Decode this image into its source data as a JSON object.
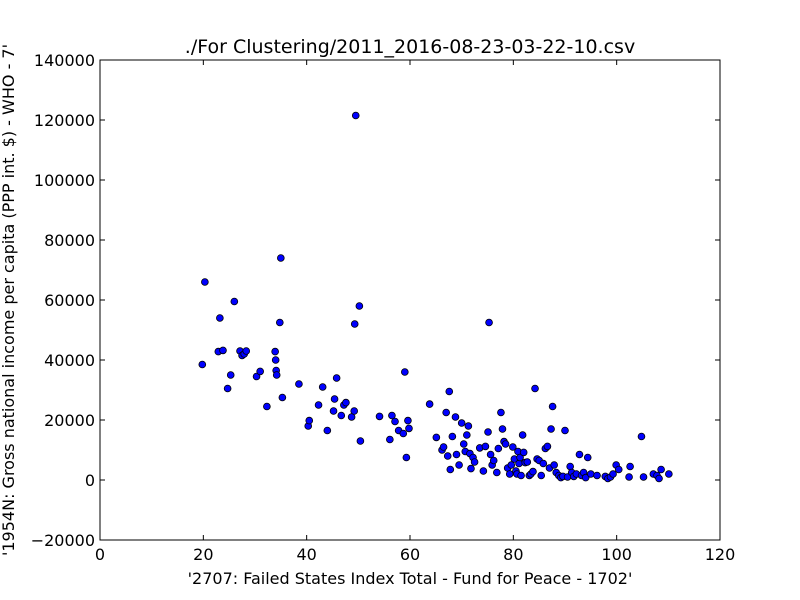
{
  "chart_data": {
    "type": "scatter",
    "title": "./For Clustering/2011_2016-08-23-03-22-10.csv",
    "xlabel": "'2707: Failed States Index Total - Fund for Peace - 1702'",
    "ylabel": "'1954N: Gross national income per capita (PPP int. $) - WHO - 7'",
    "xlim": [
      0,
      120
    ],
    "ylim": [
      -20000,
      140000
    ],
    "xticks": [
      "0",
      "20",
      "40",
      "60",
      "80",
      "100",
      "120"
    ],
    "yticks": [
      "−20000",
      "0",
      "20000",
      "40000",
      "60000",
      "80000",
      "100000",
      "120000",
      "140000"
    ],
    "grid": false,
    "marker_color": "#0000ff",
    "points": [
      [
        19.8,
        38500
      ],
      [
        20.3,
        66000
      ],
      [
        22.9,
        42800
      ],
      [
        23.2,
        54000
      ],
      [
        23.8,
        43200
      ],
      [
        24.7,
        30500
      ],
      [
        25.3,
        35000
      ],
      [
        26.0,
        59500
      ],
      [
        27.1,
        43000
      ],
      [
        27.5,
        41500
      ],
      [
        27.9,
        42000
      ],
      [
        28.3,
        43000
      ],
      [
        30.3,
        34500
      ],
      [
        31.0,
        36200
      ],
      [
        32.3,
        24500
      ],
      [
        33.9,
        42800
      ],
      [
        34.0,
        40000
      ],
      [
        34.1,
        36500
      ],
      [
        34.2,
        35000
      ],
      [
        34.8,
        52500
      ],
      [
        35.0,
        74000
      ],
      [
        35.3,
        27500
      ],
      [
        38.5,
        32000
      ],
      [
        40.3,
        18000
      ],
      [
        40.5,
        19800
      ],
      [
        42.3,
        25000
      ],
      [
        43.1,
        31000
      ],
      [
        44.0,
        16500
      ],
      [
        45.2,
        23000
      ],
      [
        45.4,
        27000
      ],
      [
        45.8,
        34000
      ],
      [
        46.7,
        21500
      ],
      [
        47.2,
        25000
      ],
      [
        47.6,
        25800
      ],
      [
        48.7,
        21000
      ],
      [
        49.2,
        23000
      ],
      [
        49.3,
        52000
      ],
      [
        49.5,
        121500
      ],
      [
        50.2,
        58000
      ],
      [
        50.4,
        13000
      ],
      [
        54.1,
        21200
      ],
      [
        56.1,
        13500
      ],
      [
        56.5,
        21500
      ],
      [
        57.1,
        19500
      ],
      [
        57.8,
        16500
      ],
      [
        58.7,
        15500
      ],
      [
        59.0,
        36000
      ],
      [
        59.3,
        7500
      ],
      [
        59.6,
        19800
      ],
      [
        59.8,
        17200
      ],
      [
        63.8,
        25300
      ],
      [
        65.1,
        14200
      ],
      [
        66.2,
        10000
      ],
      [
        66.5,
        11000
      ],
      [
        67.0,
        22500
      ],
      [
        67.3,
        8000
      ],
      [
        67.6,
        29500
      ],
      [
        67.8,
        3500
      ],
      [
        68.2,
        14500
      ],
      [
        68.8,
        21000
      ],
      [
        69.0,
        8500
      ],
      [
        69.5,
        5000
      ],
      [
        70.0,
        19000
      ],
      [
        70.4,
        12000
      ],
      [
        70.7,
        9500
      ],
      [
        71.0,
        15000
      ],
      [
        71.3,
        18000
      ],
      [
        71.6,
        8800
      ],
      [
        71.8,
        3800
      ],
      [
        72.2,
        7500
      ],
      [
        72.5,
        6000
      ],
      [
        73.5,
        10700
      ],
      [
        74.2,
        3000
      ],
      [
        74.6,
        11200
      ],
      [
        75.1,
        16000
      ],
      [
        75.3,
        52500
      ],
      [
        75.6,
        8500
      ],
      [
        75.9,
        5000
      ],
      [
        76.2,
        6500
      ],
      [
        76.8,
        2500
      ],
      [
        77.1,
        10500
      ],
      [
        77.6,
        22500
      ],
      [
        77.9,
        17000
      ],
      [
        78.2,
        12800
      ],
      [
        78.5,
        12000
      ],
      [
        78.9,
        4000
      ],
      [
        79.3,
        2000
      ],
      [
        79.6,
        5000
      ],
      [
        79.9,
        11000
      ],
      [
        80.2,
        7000
      ],
      [
        80.5,
        3000
      ],
      [
        80.7,
        2000
      ],
      [
        80.9,
        9500
      ],
      [
        81.1,
        5500
      ],
      [
        81.3,
        7500
      ],
      [
        81.5,
        1500
      ],
      [
        81.8,
        15000
      ],
      [
        82.0,
        9200
      ],
      [
        82.3,
        5800
      ],
      [
        82.7,
        6000
      ],
      [
        83.1,
        1500
      ],
      [
        83.4,
        2000
      ],
      [
        83.8,
        2800
      ],
      [
        84.2,
        30500
      ],
      [
        84.6,
        7000
      ],
      [
        85.0,
        6500
      ],
      [
        85.4,
        1500
      ],
      [
        85.8,
        5500
      ],
      [
        86.2,
        10500
      ],
      [
        86.6,
        11200
      ],
      [
        87.0,
        4000
      ],
      [
        87.3,
        17000
      ],
      [
        87.6,
        24500
      ],
      [
        87.9,
        5000
      ],
      [
        88.3,
        2500
      ],
      [
        88.8,
        1500
      ],
      [
        89.2,
        800
      ],
      [
        89.6,
        1200
      ],
      [
        90.0,
        16500
      ],
      [
        90.5,
        1000
      ],
      [
        91.0,
        4500
      ],
      [
        91.3,
        2500
      ],
      [
        91.7,
        1200
      ],
      [
        92.2,
        2000
      ],
      [
        92.8,
        8500
      ],
      [
        93.2,
        1500
      ],
      [
        93.6,
        2500
      ],
      [
        94.0,
        800
      ],
      [
        94.4,
        7500
      ],
      [
        95.0,
        2000
      ],
      [
        96.2,
        1500
      ],
      [
        97.8,
        1200
      ],
      [
        98.3,
        500
      ],
      [
        98.8,
        1000
      ],
      [
        99.3,
        2000
      ],
      [
        99.9,
        5000
      ],
      [
        100.4,
        3500
      ],
      [
        102.4,
        1000
      ],
      [
        102.6,
        4500
      ],
      [
        104.8,
        14500
      ],
      [
        105.2,
        1000
      ],
      [
        107.1,
        2000
      ],
      [
        107.8,
        1500
      ],
      [
        108.2,
        500
      ],
      [
        108.6,
        3500
      ],
      [
        110.1,
        2000
      ]
    ]
  }
}
